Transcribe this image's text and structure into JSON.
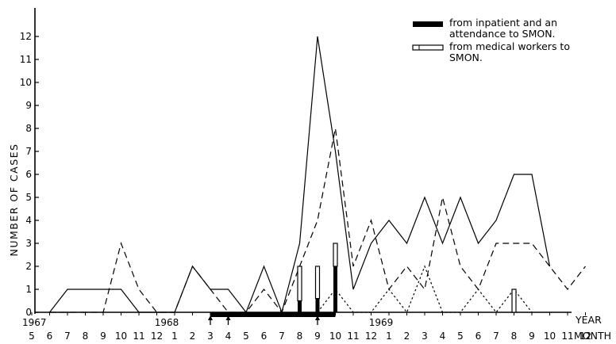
{
  "chart_data": {
    "type": "line",
    "ylabel": "NUMBER OF CASES",
    "xlabel": "YEAR",
    "xlabel2": "MONTH",
    "ylim": [
      0,
      12
    ],
    "yticks": [
      "0",
      "1",
      "2",
      "3",
      "4",
      "5",
      "6",
      "7",
      "8",
      "9",
      "10",
      "11",
      "12"
    ],
    "year_labels": [
      "1967",
      "1968",
      "1969"
    ],
    "month_labels": [
      "5",
      "6",
      "7",
      "8",
      "9",
      "10",
      "11",
      "12",
      "1",
      "2",
      "3",
      "4",
      "5",
      "6",
      "7",
      "8",
      "9",
      "10",
      "11",
      "12",
      "1",
      "2",
      "3",
      "4",
      "5",
      "6",
      "7",
      "8",
      "9",
      "10",
      "11",
      "12"
    ],
    "x": [
      "1967-05",
      "1967-06",
      "1967-07",
      "1967-08",
      "1967-09",
      "1967-10",
      "1967-11",
      "1967-12",
      "1968-01",
      "1968-02",
      "1968-03",
      "1968-04",
      "1968-05",
      "1968-06",
      "1968-07",
      "1968-08",
      "1968-09",
      "1968-10",
      "1968-11",
      "1968-12",
      "1969-01",
      "1969-02",
      "1969-03",
      "1969-04",
      "1969-05",
      "1969-06",
      "1969-07",
      "1969-08",
      "1969-09",
      "1969-10",
      "1969-11",
      "1969-12"
    ],
    "series": [
      {
        "style": "solid",
        "values": [
          null,
          0,
          1,
          1,
          1,
          1,
          0,
          0,
          0,
          2,
          1,
          1,
          0,
          2,
          0,
          3,
          12,
          7,
          1,
          3,
          4,
          3,
          5,
          3,
          5,
          3,
          4,
          6,
          6,
          2,
          null,
          null
        ]
      },
      {
        "style": "dashed",
        "values": [
          null,
          0,
          0,
          0,
          0,
          3,
          1,
          0,
          0,
          2,
          1,
          0,
          0,
          1,
          0,
          2,
          4,
          8,
          2,
          4,
          1,
          2,
          1,
          5,
          2,
          1,
          3,
          3,
          3,
          2,
          1,
          2
        ]
      },
      {
        "style": "dotted",
        "values": [
          null,
          null,
          null,
          null,
          null,
          null,
          null,
          null,
          null,
          null,
          null,
          null,
          null,
          null,
          null,
          null,
          0,
          1,
          0,
          0,
          1,
          0,
          2,
          0,
          0,
          1,
          0,
          1,
          0,
          null,
          null,
          null
        ]
      }
    ],
    "bars": [
      {
        "x": "1968-08",
        "black": 0.5,
        "white": 1.5
      },
      {
        "x": "1968-09",
        "black": 0.6,
        "white": 1.4
      },
      {
        "x": "1968-10",
        "black": 2,
        "white": 1
      },
      {
        "x": "1969-08",
        "black": 0,
        "white": 1
      }
    ],
    "period_bar": {
      "from": "1968-03",
      "to": "1968-10"
    },
    "arrows": [
      "1968-03",
      "1968-04",
      "1968-09"
    ],
    "legend": [
      {
        "swatch": "black",
        "lines": [
          "from inpatient and an",
          "attendance to SMON."
        ]
      },
      {
        "swatch": "white",
        "lines": [
          "from medical workers to",
          "SMON."
        ]
      }
    ],
    "legend_position": "top-right"
  }
}
